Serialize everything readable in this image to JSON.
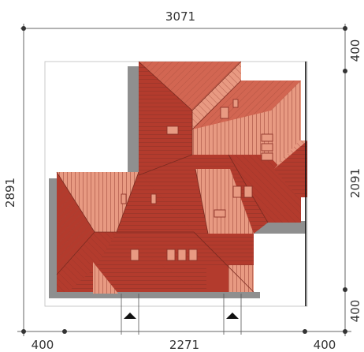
{
  "dimensions": {
    "top_total": "3071",
    "left_total": "2891",
    "right_upper": "400",
    "right_main": "2091",
    "right_lower": "400",
    "bottom_left": "400",
    "bottom_middle": "2271",
    "bottom_right": "400"
  },
  "colors": {
    "roof_light": "#e89a82",
    "roof_mid": "#d26652",
    "roof_dark": "#b33b2d",
    "roof_lines": "#a44a3a",
    "shadow": "#8f8f8f",
    "dimension_line": "#666666",
    "text": "#333333"
  }
}
